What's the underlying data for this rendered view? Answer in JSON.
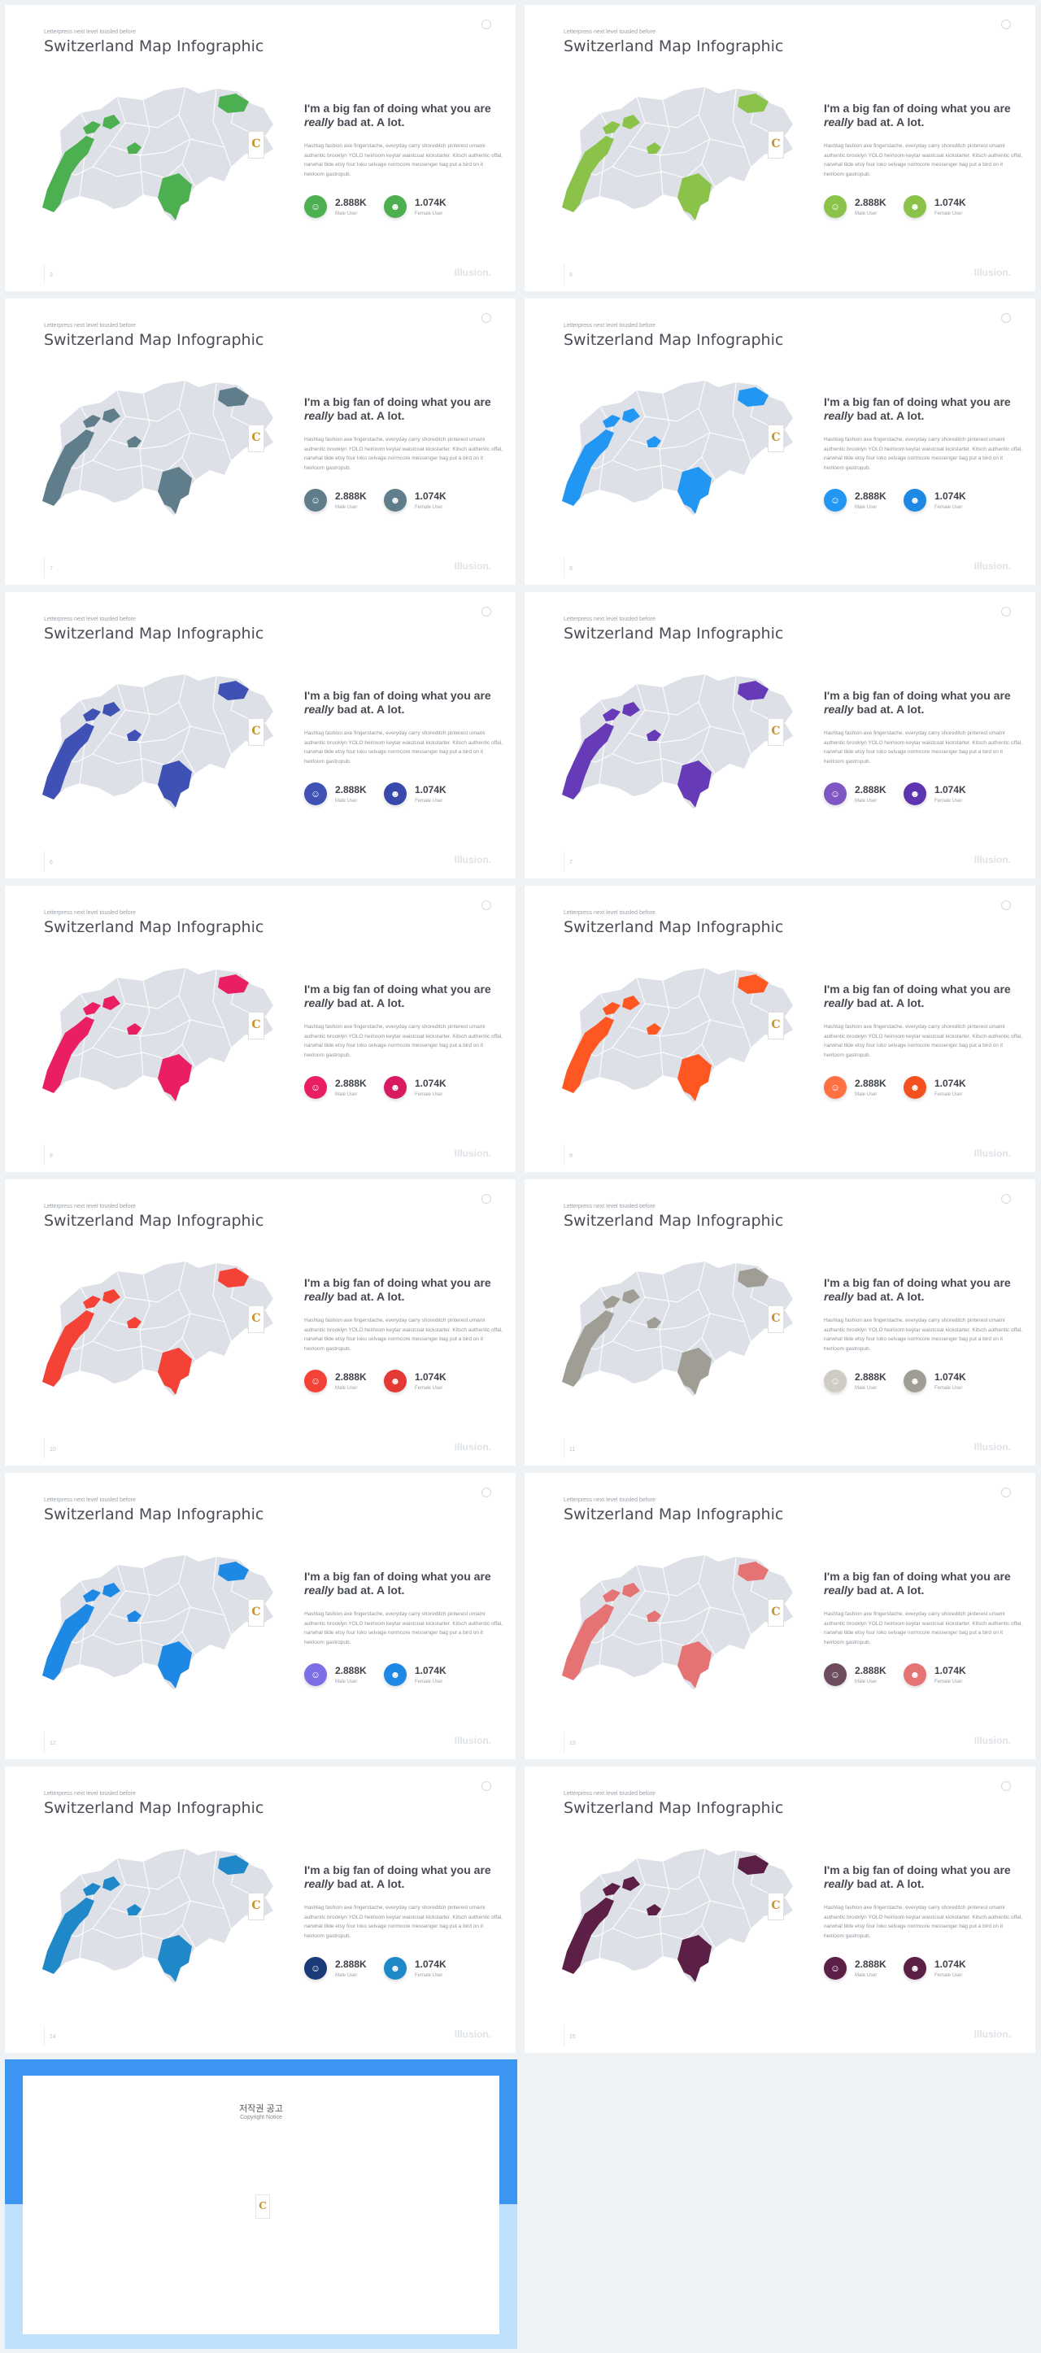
{
  "slides": [
    {
      "page": "3",
      "accent": "#4caf50",
      "hl_color": "#9aa0a8",
      "icon1": "#4caf50",
      "icon2": "#4caf50"
    },
    {
      "page": "5",
      "accent": "#8bc34a",
      "hl_color": "#9aa0a8",
      "icon1": "#8bc34a",
      "icon2": "#8bc34a"
    },
    {
      "page": "7",
      "accent": "#607d8b",
      "hl_color": "#9aa0a8",
      "icon1": "#607d8b",
      "icon2": "#607d8b"
    },
    {
      "page": "8",
      "accent": "#2196f3",
      "hl_color": "#9aa0a8",
      "icon1": "#2196f3",
      "icon2": "#1e88e5"
    },
    {
      "page": "6",
      "accent": "#3f51b5",
      "hl_color": "#9aa0a8",
      "icon1": "#3f51b5",
      "icon2": "#3949ab"
    },
    {
      "page": "7",
      "accent": "#673ab7",
      "hl_color": "#9aa0a8",
      "icon1": "#7e57c2",
      "icon2": "#5e35b1"
    },
    {
      "page": "8",
      "accent": "#e91e63",
      "hl_color": "#e91e63",
      "icon1": "#e91e63",
      "icon2": "#d81b60"
    },
    {
      "page": "9",
      "accent": "#ff5722",
      "hl_color": "#ff5722",
      "icon1": "#ff7043",
      "icon2": "#f4511e"
    },
    {
      "page": "10",
      "accent": "#f44336",
      "hl_color": "#f44336",
      "icon1": "#f44336",
      "icon2": "#e53935"
    },
    {
      "page": "11",
      "accent": "#a09e94",
      "hl_color": "#9aa0a8",
      "icon1": "#cfcdc3",
      "icon2": "#a09e94"
    },
    {
      "page": "12",
      "accent": "#1e88e5",
      "hl_color": "#7c6fe6",
      "icon1": "#7c6fe6",
      "icon2": "#1e88e5"
    },
    {
      "page": "13",
      "accent": "#e57373",
      "hl_color": "#e57373",
      "icon1": "#6d4c5e",
      "icon2": "#e57373"
    },
    {
      "page": "14",
      "accent": "#1e88c8",
      "hl_color": "#4dc3e6",
      "icon1": "#1a3a7a",
      "icon2": "#1e88c8"
    },
    {
      "page": "15",
      "accent": "#5c1f45",
      "hl_color": "#b15c8a",
      "icon1": "#5c1f45",
      "icon2": "#5c1f45"
    }
  ],
  "common": {
    "kicker_a": "Letterpress next level tousled before",
    "title": "Switzerland Map Infographic",
    "headline_a": "I'm a big fan of doing what you are",
    "headline_em": "really",
    "headline_b": "bad at. A lot.",
    "body": "Hashtag fashion axe fingerstache, everyday carry shoreditch pinterest umami authentic brooklyn YOLO heirloom keytar waistcoat kickstarter. Kitsch authentic offal, narwhal tilde etsy four loko selvage normcore messenger bag put a bird on it heirloom gastropub.",
    "stat1_value": "2.888K",
    "stat1_label": "Male User",
    "stat2_value": "1.074K",
    "stat2_label": "Female User",
    "brand": "Illusion.",
    "badge_glyph": "C",
    "map_base_color": "#dde0e7"
  },
  "copyright": {
    "title": "저작권 공고",
    "subtitle": "Copyright Notice",
    "para1": "",
    "para2": "",
    "para3": "",
    "para4": "",
    "para5": ""
  }
}
